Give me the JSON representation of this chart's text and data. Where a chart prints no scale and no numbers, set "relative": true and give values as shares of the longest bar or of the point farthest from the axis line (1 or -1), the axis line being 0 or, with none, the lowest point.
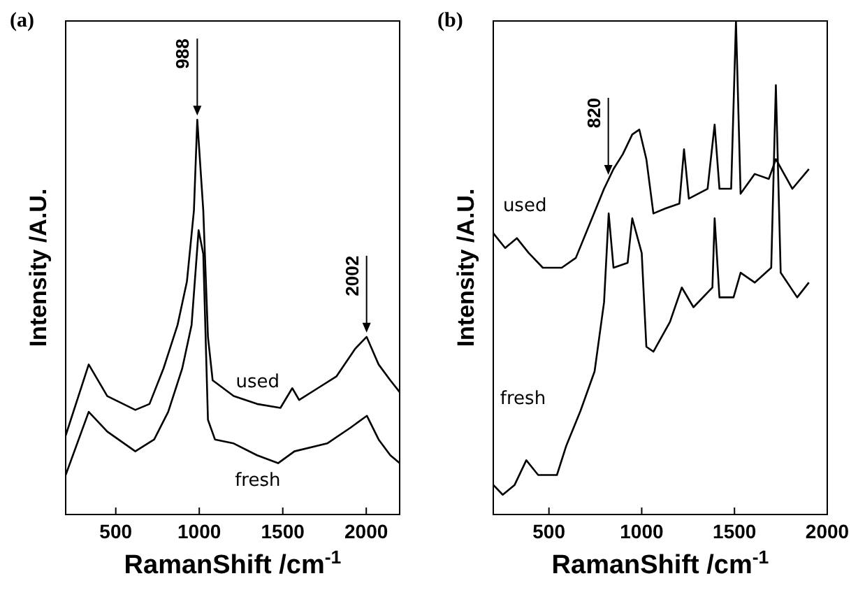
{
  "chart_data": [
    {
      "type": "line",
      "title": "(a)",
      "xlabel": "RamanShift /cm$^{-1}$",
      "ylabel": "Intensity /A.U.",
      "relative": true,
      "tick_labels": "x",
      "xlim": [
        200,
        2200
      ],
      "xticks": [
        500,
        1000,
        1500,
        2000
      ],
      "annotations": [
        {
          "text": "988",
          "x": 988,
          "y": 1.0
        },
        {
          "text": "2002",
          "x": 2002,
          "y": 0.45
        }
      ],
      "series": [
        {
          "name": "used",
          "color": "#000000",
          "x": [
            200,
            338,
            449,
            617,
            702,
            786,
            870,
            926,
            968,
            988,
            1024,
            1052,
            1080,
            1206,
            1346,
            1486,
            1557,
            1598,
            1710,
            1822,
            1934,
            2002,
            2074,
            2144,
            2200
          ],
          "values": [
            0.2,
            0.38,
            0.3,
            0.265,
            0.28,
            0.37,
            0.48,
            0.59,
            0.77,
            1.0,
            0.77,
            0.45,
            0.34,
            0.3,
            0.28,
            0.27,
            0.32,
            0.29,
            0.32,
            0.35,
            0.42,
            0.45,
            0.38,
            0.34,
            0.31
          ]
        },
        {
          "name": "fresh",
          "color": "#000000",
          "x": [
            200,
            338,
            449,
            617,
            730,
            814,
            898,
            954,
            996,
            1024,
            1052,
            1094,
            1206,
            1346,
            1472,
            1570,
            1766,
            1906,
            2004,
            2074,
            2144,
            2200
          ],
          "values": [
            0.1,
            0.26,
            0.21,
            0.16,
            0.19,
            0.26,
            0.37,
            0.48,
            0.72,
            0.66,
            0.24,
            0.19,
            0.18,
            0.15,
            0.13,
            0.16,
            0.18,
            0.22,
            0.25,
            0.19,
            0.15,
            0.13
          ]
        }
      ]
    },
    {
      "type": "line",
      "title": "(b)",
      "xlabel": "RamanShift /cm$^{-1}$",
      "ylabel": "Intensity /A.U.",
      "relative": true,
      "tick_labels": "x",
      "xlim": [
        200,
        2000
      ],
      "xticks": [
        500,
        1000,
        1500,
        2000
      ],
      "annotations": [
        {
          "text": "820",
          "x": 820,
          "y": 0.68
        }
      ],
      "series": [
        {
          "name": "used",
          "color": "#000000",
          "x": [
            200,
            264,
            327,
            391,
            467,
            569,
            645,
            721,
            797,
            848,
            898,
            949,
            987,
            1025,
            1063,
            1127,
            1203,
            1228,
            1254,
            1355,
            1393,
            1419,
            1482,
            1508,
            1533,
            1609,
            1685,
            1723,
            1812,
            1901
          ],
          "values": [
            0.57,
            0.54,
            0.56,
            0.53,
            0.5,
            0.5,
            0.52,
            0.59,
            0.66,
            0.7,
            0.73,
            0.77,
            0.78,
            0.72,
            0.61,
            0.62,
            0.63,
            0.74,
            0.64,
            0.66,
            0.79,
            0.66,
            0.66,
            1.0,
            0.65,
            0.69,
            0.68,
            0.72,
            0.66,
            0.7
          ]
        },
        {
          "name": "fresh",
          "color": "#000000",
          "x": [
            200,
            251,
            315,
            378,
            442,
            543,
            594,
            670,
            746,
            797,
            822,
            848,
            924,
            949,
            1000,
            1025,
            1063,
            1152,
            1216,
            1279,
            1381,
            1393,
            1419,
            1495,
            1533,
            1609,
            1698,
            1723,
            1749,
            1838,
            1901
          ],
          "values": [
            0.06,
            0.04,
            0.06,
            0.11,
            0.08,
            0.08,
            0.14,
            0.21,
            0.29,
            0.43,
            0.61,
            0.5,
            0.51,
            0.6,
            0.53,
            0.34,
            0.33,
            0.39,
            0.46,
            0.42,
            0.46,
            0.6,
            0.44,
            0.44,
            0.49,
            0.47,
            0.5,
            0.87,
            0.49,
            0.44,
            0.47
          ]
        }
      ]
    }
  ]
}
